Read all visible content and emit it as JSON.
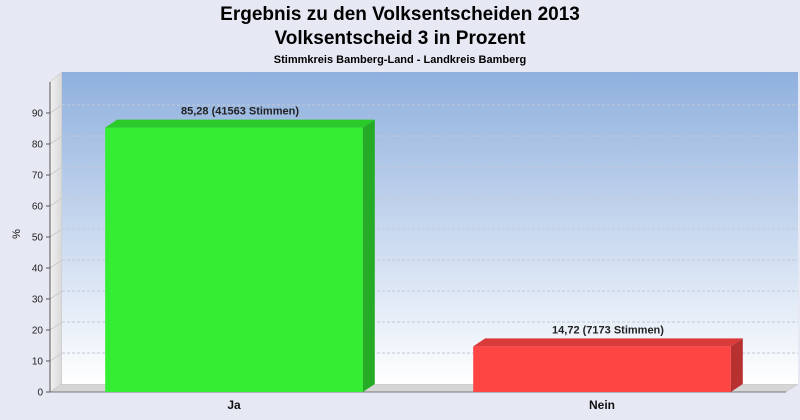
{
  "chart_data": {
    "type": "bar",
    "title": "Ergebnis zu den Volksentscheiden 2013",
    "title2": "Volksentscheid 3 in Prozent",
    "subtitle": "Stimmkreis Bamberg-Land - Landkreis Bamberg",
    "ylabel": "%",
    "xlabel": "",
    "ylim": [
      0,
      100
    ],
    "yticks": [
      0,
      10,
      20,
      30,
      40,
      50,
      60,
      70,
      80,
      90
    ],
    "grid": true,
    "categories": [
      "Ja",
      "Nein"
    ],
    "values": [
      85.28,
      14.72
    ],
    "data_labels": [
      "85,28 (41563 Stimmen)",
      "14,72 (7173 Stimmen)"
    ],
    "colors": [
      "#33ee33",
      "#ff4444"
    ]
  }
}
